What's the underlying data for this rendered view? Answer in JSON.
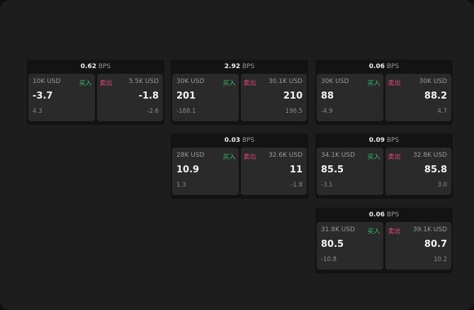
{
  "labels": {
    "buy": "买入",
    "sell": "卖出",
    "unit": "BPS"
  },
  "colors": {
    "buy": "#2fbf6a",
    "sell": "#e0487a"
  },
  "panels": [
    {
      "spread": "0.62",
      "bid": {
        "qty": "10K USD",
        "price": "-3.7",
        "change": "4.3"
      },
      "ask": {
        "qty": "5.5K USD",
        "price": "-1.8",
        "change": "-2.6"
      }
    },
    {
      "spread": "2.92",
      "bid": {
        "qty": "30K USD",
        "price": "201",
        "change": "-188.1"
      },
      "ask": {
        "qty": "30.1K USD",
        "price": "210",
        "change": "196.5"
      }
    },
    {
      "spread": "0.06",
      "bid": {
        "qty": "30K USD",
        "price": "88",
        "change": "-4.9"
      },
      "ask": {
        "qty": "30K USD",
        "price": "88.2",
        "change": "4.7"
      }
    },
    {
      "spread": "0.03",
      "bid": {
        "qty": "28K USD",
        "price": "10.9",
        "change": "1.3"
      },
      "ask": {
        "qty": "32.6K USD",
        "price": "11",
        "change": "-1.8"
      }
    },
    {
      "spread": "0.09",
      "bid": {
        "qty": "34.1K USD",
        "price": "85.5",
        "change": "-3.1"
      },
      "ask": {
        "qty": "32.8K USD",
        "price": "85.8",
        "change": "3.0"
      }
    },
    {
      "spread": "0.06",
      "bid": {
        "qty": "31.8K USD",
        "price": "80.5",
        "change": "-10.8"
      },
      "ask": {
        "qty": "39.1K USD",
        "price": "80.7",
        "change": "10.2"
      }
    }
  ]
}
